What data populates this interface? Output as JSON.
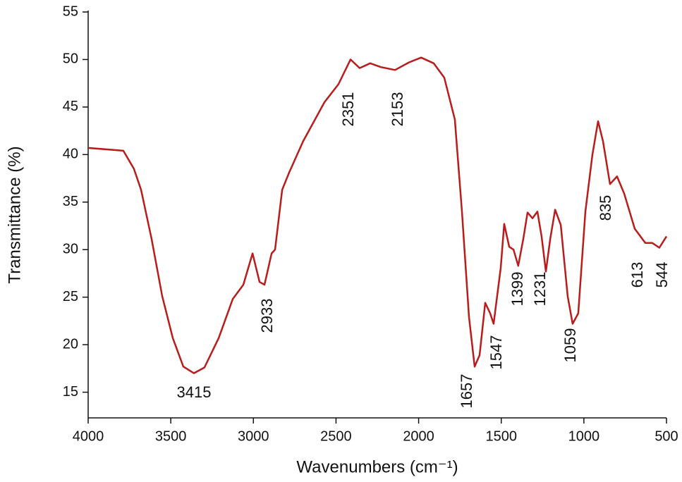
{
  "chart_data": {
    "type": "line",
    "x_label": "Wavenumbers (cm⁻¹)",
    "y_label": "Transmittance (%)",
    "xlim": [
      4000,
      500
    ],
    "ylim": [
      12.3,
      55
    ],
    "xticks": [
      4000,
      3500,
      3000,
      2500,
      2000,
      1500,
      1000,
      500
    ],
    "yticks": [
      15,
      20,
      25,
      30,
      35,
      40,
      45,
      50,
      55
    ],
    "annotations": [
      "3415",
      "2933",
      "2351",
      "2153",
      "1657",
      "1547",
      "1399",
      "1231",
      "1059",
      "835",
      "613",
      "544"
    ],
    "series": [
      {
        "color": "#b81c1c",
        "x": [
          4000,
          3787,
          3723,
          3680,
          3616,
          3552,
          3488,
          3424,
          3360,
          3296,
          3210,
          3125,
          3061,
          3005,
          2963,
          2933,
          2890,
          2869,
          2826,
          2784,
          2699,
          2570,
          2485,
          2412,
          2357,
          2293,
          2229,
          2143,
          2058,
          1985,
          1909,
          1845,
          1781,
          1738,
          1695,
          1661,
          1631,
          1597,
          1567,
          1546,
          1503,
          1482,
          1452,
          1426,
          1397,
          1367,
          1341,
          1311,
          1281,
          1256,
          1230,
          1204,
          1174,
          1140,
          1098,
          1068,
          1034,
          991,
          948,
          914,
          884,
          842,
          799,
          756,
          692,
          628,
          586,
          543,
          500
        ],
        "values": [
          40.7,
          40.4,
          38.5,
          36.3,
          31.1,
          25.1,
          20.7,
          17.7,
          17.0,
          17.6,
          20.7,
          24.8,
          26.3,
          29.6,
          26.6,
          26.3,
          29.6,
          30.0,
          36.3,
          38.1,
          41.4,
          45.5,
          47.4,
          50.0,
          49.1,
          49.6,
          49.2,
          48.9,
          49.7,
          50.2,
          49.6,
          48.1,
          43.7,
          34.0,
          22.9,
          17.7,
          18.9,
          24.4,
          23.3,
          22.2,
          28.1,
          32.7,
          30.3,
          30.0,
          28.3,
          31.1,
          33.9,
          33.3,
          34.0,
          31.4,
          27.7,
          31.1,
          34.2,
          32.6,
          25.1,
          22.2,
          23.3,
          34.0,
          40.0,
          43.5,
          41.4,
          36.9,
          37.7,
          35.9,
          32.2,
          30.7,
          30.7,
          30.2,
          31.4
        ]
      }
    ]
  }
}
